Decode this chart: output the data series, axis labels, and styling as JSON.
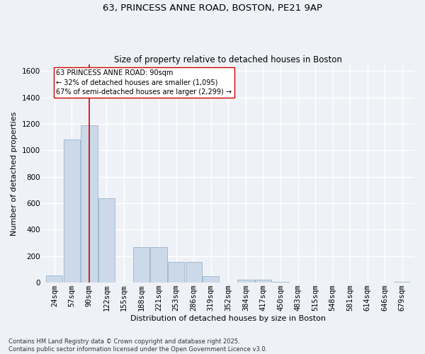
{
  "title_line1": "63, PRINCESS ANNE ROAD, BOSTON, PE21 9AP",
  "title_line2": "Size of property relative to detached houses in Boston",
  "xlabel": "Distribution of detached houses by size in Boston",
  "ylabel": "Number of detached properties",
  "categories": [
    "24sqm",
    "57sqm",
    "90sqm",
    "122sqm",
    "155sqm",
    "188sqm",
    "221sqm",
    "253sqm",
    "286sqm",
    "319sqm",
    "352sqm",
    "384sqm",
    "417sqm",
    "450sqm",
    "483sqm",
    "515sqm",
    "548sqm",
    "581sqm",
    "614sqm",
    "646sqm",
    "679sqm"
  ],
  "values": [
    57,
    1080,
    1190,
    640,
    0,
    270,
    270,
    155,
    155,
    50,
    0,
    20,
    20,
    5,
    0,
    0,
    0,
    0,
    0,
    0,
    5
  ],
  "bar_color": "#ccd9e8",
  "bar_edgecolor": "#9ab4cc",
  "vline_x": 2,
  "vline_color": "#cc0000",
  "annotation_text": "63 PRINCESS ANNE ROAD: 90sqm\n← 32% of detached houses are smaller (1,095)\n67% of semi-detached houses are larger (2,299) →",
  "annotation_box_color": "#ffffff",
  "annotation_box_edgecolor": "#cc0000",
  "ylim": [
    0,
    1650
  ],
  "yticks": [
    0,
    200,
    400,
    600,
    800,
    1000,
    1200,
    1400,
    1600
  ],
  "footnote": "Contains HM Land Registry data © Crown copyright and database right 2025.\nContains public sector information licensed under the Open Government Licence v3.0.",
  "background_color": "#eef2f7",
  "grid_color": "#ffffff",
  "title_fontsize": 9.5,
  "subtitle_fontsize": 8.5,
  "axis_label_fontsize": 8,
  "tick_fontsize": 7.5,
  "footnote_fontsize": 6
}
